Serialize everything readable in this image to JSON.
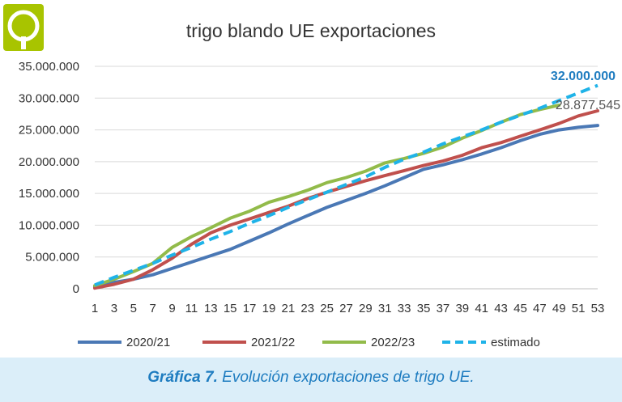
{
  "caption": {
    "bold": "Gráfica 7.",
    "text": " Evolución exportaciones de trigo UE."
  },
  "colors": {
    "2020/21": "#4a78b5",
    "2021/22": "#c0504d",
    "2022/23": "#92bb4a",
    "estimado": "#1fb3e8",
    "logo": "#a8c400",
    "caption": "#1e7cc0",
    "frame": "#dbeef9"
  },
  "chart_data": {
    "type": "line",
    "title": "trigo blando UE exportaciones",
    "xlabel": "",
    "ylabel": "",
    "xlim": [
      1,
      53
    ],
    "ylim": [
      0,
      35000000
    ],
    "grid": true,
    "legend_position": "bottom",
    "yticks": [
      "0",
      "5.000.000",
      "10.000.000",
      "15.000.000",
      "20.000.000",
      "25.000.000",
      "30.000.000",
      "35.000.000"
    ],
    "xticks": [
      "1",
      "3",
      "5",
      "7",
      "9",
      "11",
      "13",
      "15",
      "17",
      "19",
      "21",
      "23",
      "25",
      "27",
      "29",
      "31",
      "33",
      "35",
      "37",
      "39",
      "41",
      "43",
      "45",
      "47",
      "49",
      "51",
      "53"
    ],
    "series": [
      {
        "name": "2020/21",
        "style": "solid",
        "x": [
          1,
          3,
          5,
          7,
          9,
          11,
          13,
          15,
          17,
          19,
          21,
          23,
          25,
          27,
          29,
          31,
          33,
          35,
          37,
          39,
          41,
          43,
          45,
          47,
          49,
          51,
          53
        ],
        "y": [
          300000,
          1000000,
          1500000,
          2200000,
          3200000,
          4200000,
          5200000,
          6200000,
          7500000,
          8800000,
          10200000,
          11500000,
          12800000,
          13900000,
          15000000,
          16200000,
          17500000,
          18800000,
          19500000,
          20300000,
          21200000,
          22200000,
          23300000,
          24300000,
          25000000,
          25400000,
          25700000
        ]
      },
      {
        "name": "2021/22",
        "style": "solid",
        "x": [
          1,
          3,
          5,
          7,
          9,
          11,
          13,
          15,
          17,
          19,
          21,
          23,
          25,
          27,
          29,
          31,
          33,
          35,
          37,
          39,
          41,
          43,
          45,
          47,
          49,
          51,
          53
        ],
        "y": [
          100000,
          700000,
          1500000,
          3000000,
          4800000,
          7000000,
          8800000,
          10000000,
          11000000,
          12000000,
          13000000,
          14200000,
          15200000,
          16100000,
          17000000,
          17800000,
          18600000,
          19400000,
          20100000,
          21000000,
          22200000,
          23000000,
          24000000,
          25000000,
          26000000,
          27200000,
          28000000
        ]
      },
      {
        "name": "2022/23",
        "style": "solid",
        "x": [
          1,
          3,
          5,
          7,
          9,
          11,
          13,
          15,
          17,
          19,
          21,
          23,
          25,
          27,
          29,
          31,
          33,
          35,
          37,
          39,
          41,
          43,
          45,
          47,
          49
        ],
        "y": [
          500000,
          1500000,
          2700000,
          4000000,
          6500000,
          8200000,
          9600000,
          11100000,
          12200000,
          13600000,
          14500000,
          15500000,
          16700000,
          17500000,
          18500000,
          19800000,
          20500000,
          21300000,
          22300000,
          23700000,
          24900000,
          26200000,
          27400000,
          28200000,
          28877545
        ]
      },
      {
        "name": "estimado",
        "style": "dashed",
        "x": [
          1,
          3,
          5,
          7,
          9,
          11,
          13,
          15,
          17,
          19,
          21,
          23,
          25,
          27,
          29,
          31,
          33,
          35,
          37,
          39,
          41,
          43,
          45,
          47,
          49,
          51,
          53
        ],
        "y": [
          600000,
          1800000,
          2900000,
          4000000,
          5300000,
          6500000,
          7800000,
          9000000,
          10300000,
          11500000,
          12800000,
          14000000,
          15200000,
          16400000,
          17600000,
          19100000,
          20400000,
          21500000,
          22800000,
          23900000,
          25000000,
          26200000,
          27300000,
          28400000,
          29600000,
          30800000,
          32000000
        ]
      }
    ],
    "annotations": [
      {
        "text": "32.000.000",
        "series": "estimado"
      },
      {
        "text": "28.877.545",
        "series": "2022/23"
      }
    ]
  }
}
